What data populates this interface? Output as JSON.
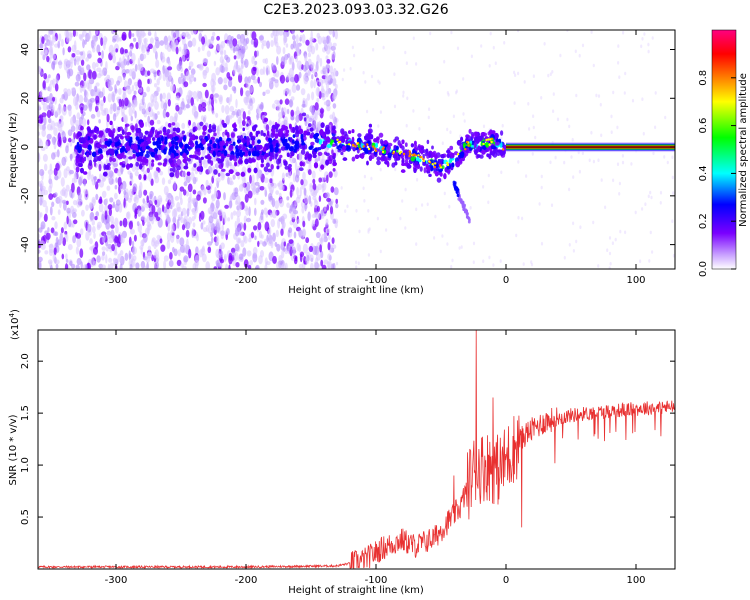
{
  "title": "C2E3.2023.093.03.32.G26",
  "chart_data": [
    {
      "type": "heatmap",
      "xlabel": "Height of straight line (km)",
      "ylabel": "Frequency (Hz)",
      "xlim": [
        -360,
        130
      ],
      "ylim": [
        -50,
        48
      ],
      "xticks": [
        -300,
        -200,
        -100,
        0,
        100
      ],
      "yticks": [
        -40,
        -20,
        0,
        20,
        40
      ],
      "colorbar": {
        "label": "Normalized spectral amplitude",
        "range": [
          0.0,
          1.0
        ],
        "ticks": [
          "0.0",
          "0.2",
          "0.4",
          "0.6",
          "0.8"
        ],
        "colors": [
          "#ffffff",
          "#7a00ff",
          "#0000ff",
          "#00ffff",
          "#00ff00",
          "#ffff00",
          "#ff7f00",
          "#ff0000",
          "#ff0080"
        ]
      },
      "features": {
        "noise_region_x": [
          -360,
          -130
        ],
        "main_trace": [
          {
            "x": -320,
            "y": 0
          },
          {
            "x": -200,
            "y": 0
          },
          {
            "x": -130,
            "y": 2
          },
          {
            "x": -100,
            "y": 0
          },
          {
            "x": -70,
            "y": -4
          },
          {
            "x": -50,
            "y": -8
          },
          {
            "x": -40,
            "y": -5
          },
          {
            "x": -30,
            "y": 1
          },
          {
            "x": -10,
            "y": 2
          },
          {
            "x": 0,
            "y": 0
          },
          {
            "x": 130,
            "y": 0
          }
        ],
        "branch_trace": [
          {
            "x": -40,
            "y": -15
          },
          {
            "x": -28,
            "y": -30
          }
        ],
        "strong_band_x": [
          0,
          130
        ],
        "strong_band_y": 0
      }
    },
    {
      "type": "line",
      "xlabel": "Height of straight line (km)",
      "ylabel": "SNR (10 * v/v)",
      "y_multiplier": "(x10",
      "y_multiplier_exp": "4",
      "y_multiplier_close": ")",
      "xlim": [
        -360,
        130
      ],
      "ylim": [
        0,
        2.3
      ],
      "xticks": [
        -300,
        -200,
        -100,
        0,
        100
      ],
      "yticks": [
        "0.5",
        "1.0",
        "1.5",
        "2.0"
      ],
      "color": "#e83030",
      "envelope": [
        {
          "x": -360,
          "y": 0.02
        },
        {
          "x": -200,
          "y": 0.02
        },
        {
          "x": -130,
          "y": 0.03
        },
        {
          "x": -110,
          "y": 0.08
        },
        {
          "x": -95,
          "y": 0.2
        },
        {
          "x": -80,
          "y": 0.28
        },
        {
          "x": -70,
          "y": 0.22
        },
        {
          "x": -55,
          "y": 0.3
        },
        {
          "x": -45,
          "y": 0.45
        },
        {
          "x": -35,
          "y": 0.6
        },
        {
          "x": -25,
          "y": 0.95
        },
        {
          "x": -15,
          "y": 1.0
        },
        {
          "x": -5,
          "y": 0.95
        },
        {
          "x": 5,
          "y": 1.15
        },
        {
          "x": 15,
          "y": 1.3
        },
        {
          "x": 30,
          "y": 1.42
        },
        {
          "x": 50,
          "y": 1.48
        },
        {
          "x": 80,
          "y": 1.52
        },
        {
          "x": 110,
          "y": 1.55
        },
        {
          "x": 130,
          "y": 1.56
        }
      ],
      "spikes": [
        {
          "x": -23,
          "y": 2.3
        },
        {
          "x": -10,
          "y": 1.65
        },
        {
          "x": 12,
          "y": 0.4
        },
        {
          "x": -30,
          "y": 0.6
        },
        {
          "x": -40,
          "y": 0.9
        }
      ]
    }
  ]
}
